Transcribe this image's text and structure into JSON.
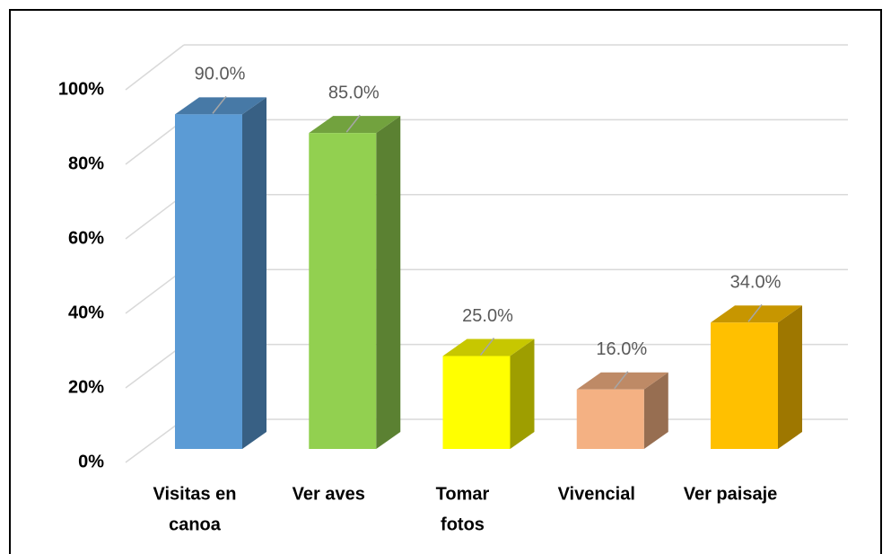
{
  "chart_data": {
    "type": "bar3d",
    "categories": [
      [
        "Visitas en",
        "canoa"
      ],
      [
        "Ver aves"
      ],
      [
        "Tomar",
        "fotos"
      ],
      [
        "Vivencial"
      ],
      [
        "Ver paisaje"
      ]
    ],
    "values": [
      90,
      85,
      25,
      16,
      34
    ],
    "value_labels": [
      "90.0%",
      "85.0%",
      "25.0%",
      "16.0%",
      "34.0%"
    ],
    "colors": [
      "#5b9bd5",
      "#92d050",
      "#ffff00",
      "#f4b183",
      "#ffc000"
    ],
    "ylim": [
      0,
      100
    ],
    "yticks": [
      {
        "value": 0,
        "label": "0%"
      },
      {
        "value": 20,
        "label": "20%"
      },
      {
        "value": 40,
        "label": "40%"
      },
      {
        "value": 60,
        "label": "60%"
      },
      {
        "value": 80,
        "label": "80%"
      },
      {
        "value": 100,
        "label": "100%"
      }
    ],
    "grid": true
  }
}
